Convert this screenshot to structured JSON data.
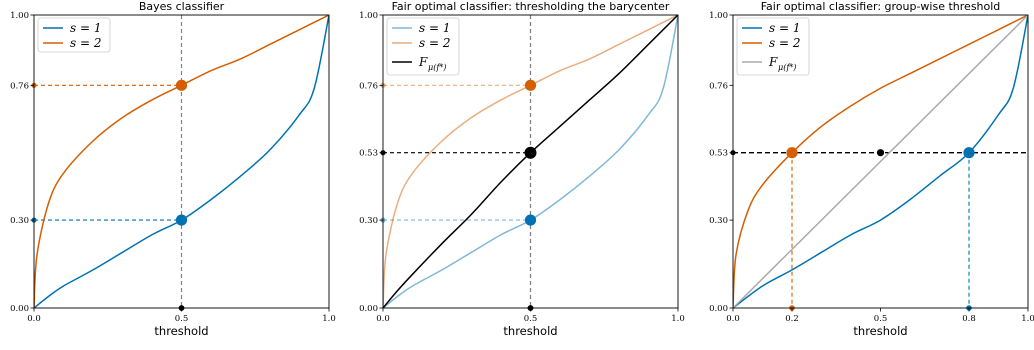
{
  "colors": {
    "s1": "#0072b2",
    "s2": "#d55e00",
    "barycenter": "#000000",
    "guide": "#808080",
    "diag": "#aaaaaa"
  },
  "chart_data": [
    {
      "type": "line",
      "title": "Bayes classifier",
      "xlabel": "threshold",
      "xlim": [
        0,
        1
      ],
      "ylim": [
        0,
        1
      ],
      "xticks": [
        "0.0",
        "0.5",
        "1.0"
      ],
      "yticks": [
        "0.00",
        "0.30",
        "0.76",
        "1.00"
      ],
      "legend": {
        "position": "top-left",
        "entries": [
          {
            "text": "s = 1",
            "series": "s1"
          },
          {
            "text": "s = 2",
            "series": "s2"
          }
        ]
      },
      "series": [
        {
          "key": "s1",
          "x": [
            0,
            0.05,
            0.1,
            0.2,
            0.3,
            0.4,
            0.5,
            0.6,
            0.7,
            0.8,
            0.9,
            0.95,
            1.0
          ],
          "y": [
            0,
            0.04,
            0.075,
            0.13,
            0.19,
            0.25,
            0.3,
            0.37,
            0.45,
            0.54,
            0.66,
            0.75,
            1.0
          ]
        },
        {
          "key": "s2",
          "x": [
            0,
            0.01,
            0.05,
            0.1,
            0.2,
            0.3,
            0.4,
            0.5,
            0.6,
            0.7,
            0.8,
            0.9,
            1.0
          ],
          "y": [
            0,
            0.18,
            0.36,
            0.46,
            0.57,
            0.65,
            0.71,
            0.76,
            0.81,
            0.85,
            0.9,
            0.95,
            1.0
          ]
        }
      ],
      "guides": [
        {
          "x": 0.5,
          "y": 0.3,
          "color": "s1"
        },
        {
          "x": 0.5,
          "y": 0.76,
          "color": "s2"
        }
      ],
      "points": [
        {
          "x": 0.5,
          "y": 0.76,
          "color": "s2"
        },
        {
          "x": 0.5,
          "y": 0.3,
          "color": "s1"
        }
      ]
    },
    {
      "type": "line",
      "title": "Fair optimal classifier: thresholding the barycenter",
      "xlabel": "threshold",
      "xlim": [
        0,
        1
      ],
      "ylim": [
        0,
        1
      ],
      "xticks": [
        "0.0",
        "0.5",
        "1.0"
      ],
      "yticks": [
        "0.00",
        "0.30",
        "0.53",
        "0.76",
        "1.00"
      ],
      "legend": {
        "position": "top-left",
        "entries": [
          {
            "text": "s = 1",
            "series": "s1"
          },
          {
            "text": "s = 2",
            "series": "s2"
          },
          {
            "text": "F",
            "sub": "μ(f*)",
            "series": "bary"
          }
        ]
      },
      "series": [
        {
          "key": "s1",
          "alpha": 0.5,
          "x": [
            0,
            0.05,
            0.1,
            0.2,
            0.3,
            0.4,
            0.5,
            0.6,
            0.7,
            0.8,
            0.9,
            0.95,
            1.0
          ],
          "y": [
            0,
            0.04,
            0.075,
            0.13,
            0.19,
            0.25,
            0.3,
            0.37,
            0.45,
            0.54,
            0.66,
            0.75,
            1.0
          ]
        },
        {
          "key": "s2",
          "alpha": 0.5,
          "x": [
            0,
            0.01,
            0.05,
            0.1,
            0.2,
            0.3,
            0.4,
            0.5,
            0.6,
            0.7,
            0.8,
            0.9,
            1.0
          ],
          "y": [
            0,
            0.18,
            0.36,
            0.46,
            0.57,
            0.65,
            0.71,
            0.76,
            0.81,
            0.85,
            0.9,
            0.95,
            1.0
          ]
        },
        {
          "key": "bary",
          "x": [
            0,
            0.05,
            0.1,
            0.2,
            0.3,
            0.4,
            0.5,
            0.6,
            0.7,
            0.8,
            0.9,
            1.0
          ],
          "y": [
            0,
            0.06,
            0.115,
            0.22,
            0.32,
            0.43,
            0.53,
            0.62,
            0.71,
            0.8,
            0.9,
            1.0
          ]
        }
      ],
      "guides": [
        {
          "x": 0.5,
          "y": 0.3,
          "color": "s1",
          "alpha": 0.5
        },
        {
          "x": 0.5,
          "y": 0.76,
          "color": "s2",
          "alpha": 0.5
        },
        {
          "x": 0.5,
          "y": 0.53,
          "color": "bary"
        }
      ],
      "points": [
        {
          "x": 0.5,
          "y": 0.76,
          "color": "s2"
        },
        {
          "x": 0.5,
          "y": 0.3,
          "color": "s1"
        },
        {
          "x": 0.5,
          "y": 0.53,
          "color": "bary",
          "large": true
        }
      ]
    },
    {
      "type": "line",
      "title": "Fair optimal classifier: group-wise threshold",
      "xlabel": "threshold",
      "xlim": [
        0,
        1
      ],
      "ylim": [
        0,
        1
      ],
      "xticks": [
        "0.0",
        "0.2",
        "0.5",
        "0.8",
        "1.0"
      ],
      "yticks": [
        "0.00",
        "0.30",
        "0.53",
        "0.76",
        "1.00"
      ],
      "legend": {
        "position": "top-left",
        "entries": [
          {
            "text": "s = 1",
            "series": "s1"
          },
          {
            "text": "s = 2",
            "series": "s2"
          },
          {
            "text": "F",
            "sub": "μ(f*)",
            "series": "diag"
          }
        ]
      },
      "series": [
        {
          "key": "s1",
          "x": [
            0,
            0.1,
            0.2,
            0.3,
            0.4,
            0.5,
            0.6,
            0.7,
            0.8,
            0.9,
            0.95,
            1.0
          ],
          "y": [
            0,
            0.075,
            0.13,
            0.19,
            0.25,
            0.3,
            0.37,
            0.45,
            0.53,
            0.66,
            0.75,
            1.0
          ]
        },
        {
          "key": "s2",
          "x": [
            0,
            0.01,
            0.05,
            0.1,
            0.2,
            0.3,
            0.4,
            0.5,
            0.6,
            0.7,
            0.8,
            0.9,
            1.0
          ],
          "y": [
            0,
            0.18,
            0.33,
            0.42,
            0.53,
            0.62,
            0.69,
            0.75,
            0.8,
            0.85,
            0.9,
            0.95,
            1.0
          ]
        },
        {
          "key": "diag",
          "x": [
            0,
            1
          ],
          "y": [
            0,
            1
          ]
        }
      ],
      "guides": [
        {
          "x": 0.2,
          "y": 0.53,
          "color": "s2",
          "vertical_only": true
        },
        {
          "x": 0.8,
          "y": 0.53,
          "color": "s1",
          "vertical_only": true
        },
        {
          "hline": 0.53,
          "color": "bary"
        }
      ],
      "points": [
        {
          "x": 0.2,
          "y": 0.53,
          "color": "s2"
        },
        {
          "x": 0.5,
          "y": 0.53,
          "color": "bary",
          "small": true
        },
        {
          "x": 0.8,
          "y": 0.53,
          "color": "s1"
        }
      ]
    }
  ]
}
